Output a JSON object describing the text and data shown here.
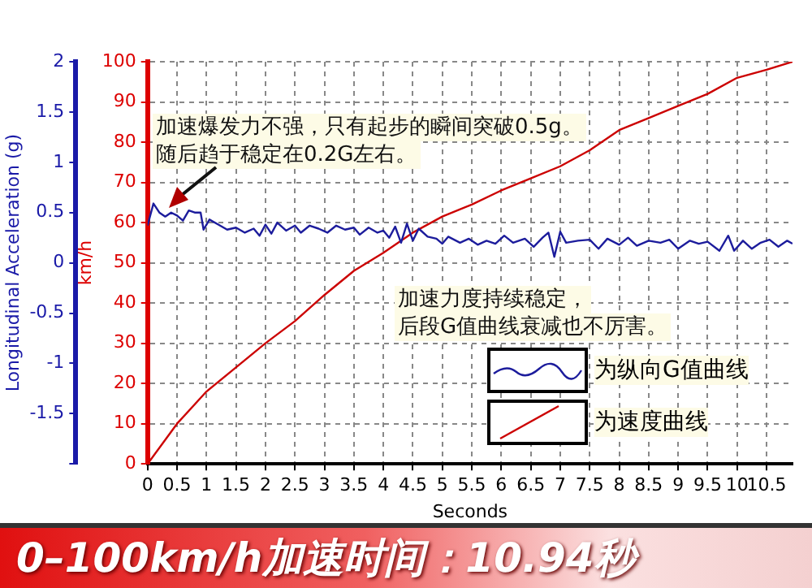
{
  "chart_data": {
    "type": "line",
    "title": "0–100km/h加速时间：10.94秒",
    "xlabel": "Seconds",
    "ylabel": "km/h",
    "y2label": "Longitudinal Acceleration (g)",
    "annotations": [
      "加速爆发力不强，只有起步的瞬间突破0.5g。",
      "随后趋于稳定在0.2G左右。",
      "加速力度持续稳定，",
      "后段G值曲线衰减也不厉害。"
    ],
    "xlim": [
      0,
      10.94
    ],
    "xticks": [
      0,
      0.5,
      1,
      1.5,
      2,
      2.5,
      3,
      3.5,
      4,
      4.5,
      5,
      5.5,
      6,
      6.5,
      7,
      7.5,
      8,
      8.5,
      9,
      9.5,
      10,
      10.5
    ],
    "ylim": [
      0,
      100
    ],
    "yticks": [
      0,
      10,
      20,
      30,
      40,
      50,
      60,
      70,
      80,
      90,
      100
    ],
    "y2lim": [
      -2,
      2
    ],
    "y2ticks": [
      {
        "value": -2,
        "label": null
      },
      -1.5,
      -1,
      -0.5,
      0,
      0.5,
      1,
      1.5,
      2
    ],
    "grid": true,
    "legend": "bottom right",
    "marker": "none",
    "line_style": "solid",
    "series": [
      {
        "name": "为纵向G值曲线",
        "color": "#1c1c9c",
        "axis": "y2",
        "x": [
          0,
          0.1,
          0.2,
          0.3,
          0.4,
          0.5,
          0.6,
          0.7,
          0.8,
          0.9,
          0.95,
          1.05,
          1.2,
          1.35,
          1.5,
          1.65,
          1.8,
          1.9,
          2.0,
          2.1,
          2.2,
          2.35,
          2.5,
          2.6,
          2.75,
          2.9,
          3.05,
          3.2,
          3.35,
          3.5,
          3.6,
          3.75,
          3.9,
          4.0,
          4.1,
          4.2,
          4.3,
          4.4,
          4.5,
          4.6,
          4.75,
          4.9,
          5.0,
          5.1,
          5.3,
          5.45,
          5.6,
          5.75,
          5.9,
          6.05,
          6.2,
          6.4,
          6.55,
          6.7,
          6.8,
          6.9,
          7.0,
          7.1,
          7.3,
          7.5,
          7.65,
          7.8,
          8.0,
          8.15,
          8.3,
          8.5,
          8.7,
          8.85,
          9.0,
          9.2,
          9.35,
          9.5,
          9.7,
          9.85,
          9.95,
          10.1,
          10.25,
          10.4,
          10.55,
          10.7,
          10.85,
          10.94
        ],
        "values": [
          0.37,
          0.59,
          0.5,
          0.46,
          0.5,
          0.47,
          0.42,
          0.52,
          0.5,
          0.5,
          0.33,
          0.43,
          0.38,
          0.33,
          0.35,
          0.3,
          0.34,
          0.27,
          0.38,
          0.29,
          0.4,
          0.32,
          0.37,
          0.3,
          0.37,
          0.34,
          0.3,
          0.37,
          0.33,
          0.35,
          0.28,
          0.35,
          0.3,
          0.32,
          0.25,
          0.36,
          0.2,
          0.39,
          0.22,
          0.34,
          0.26,
          0.24,
          0.19,
          0.26,
          0.2,
          0.24,
          0.18,
          0.22,
          0.19,
          0.27,
          0.2,
          0.24,
          0.16,
          0.25,
          0.3,
          0.06,
          0.31,
          0.2,
          0.22,
          0.23,
          0.14,
          0.24,
          0.18,
          0.25,
          0.17,
          0.22,
          0.2,
          0.23,
          0.14,
          0.22,
          0.19,
          0.21,
          0.12,
          0.27,
          0.12,
          0.22,
          0.14,
          0.2,
          0.23,
          0.16,
          0.22,
          0.19
        ]
      },
      {
        "name": "为速度曲线",
        "color": "#cc0000",
        "x": [
          0,
          0.5,
          1,
          1.5,
          2,
          2.5,
          3,
          3.5,
          4,
          4.5,
          5,
          5.5,
          6,
          6.5,
          7,
          7.5,
          8,
          8.5,
          9,
          9.5,
          10,
          10.5,
          10.94
        ],
        "values": [
          0,
          10,
          18,
          24,
          30,
          35.5,
          42,
          48,
          52.5,
          57.5,
          61.5,
          64.5,
          68,
          71,
          74,
          78,
          83,
          86,
          89,
          92,
          96,
          98,
          100
        ]
      }
    ]
  }
}
